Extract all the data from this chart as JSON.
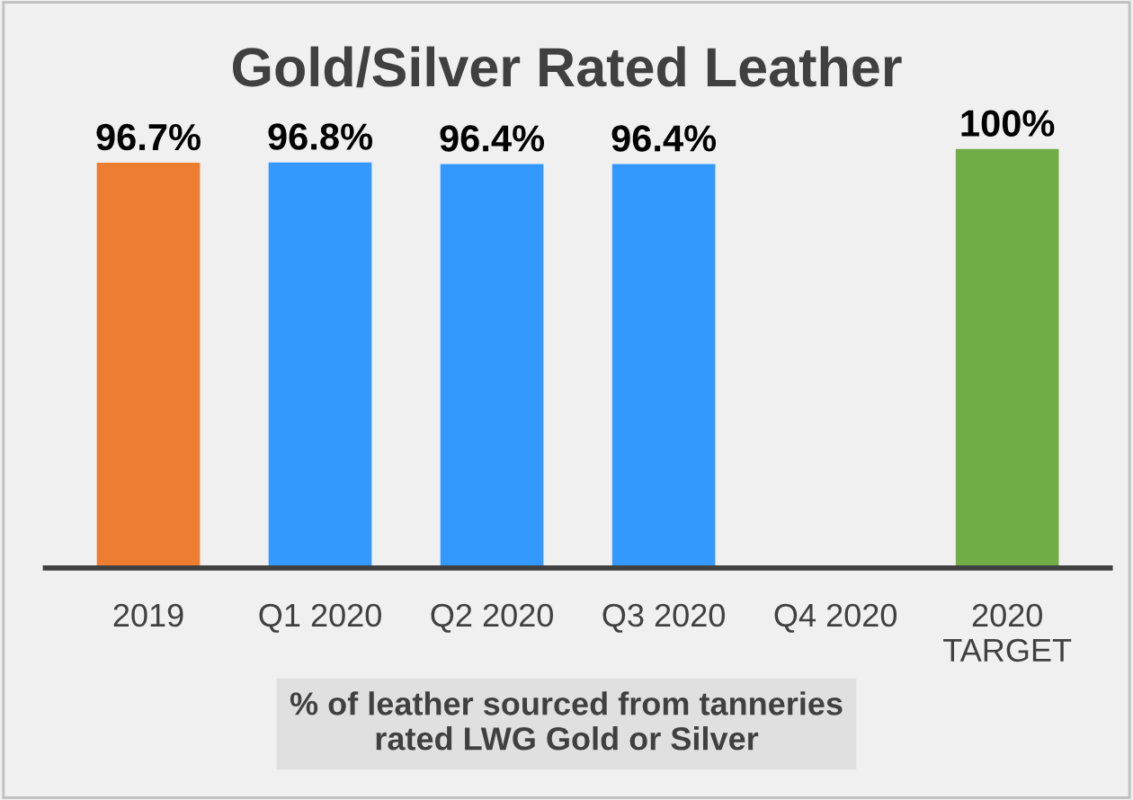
{
  "chart_data": {
    "type": "bar",
    "title": "Gold/Silver Rated Leather",
    "categories": [
      "2019",
      "Q1 2020",
      "Q2 2020",
      "Q3 2020",
      "Q4 2020",
      "2020\nTARGET"
    ],
    "values": [
      96.7,
      96.8,
      96.4,
      96.4,
      null,
      100
    ],
    "colors": [
      "#ed7d31",
      "#3399ff",
      "#3399ff",
      "#3399ff",
      "#3399ff",
      "#70ad47"
    ],
    "value_labels": [
      "96.7%",
      "96.8%",
      "96.4%",
      "96.4%",
      null,
      "100%"
    ],
    "annotations": [
      "% of leather sourced from tanneries\nrated LWG Gold or Silver"
    ],
    "grid": false,
    "legend": false
  }
}
